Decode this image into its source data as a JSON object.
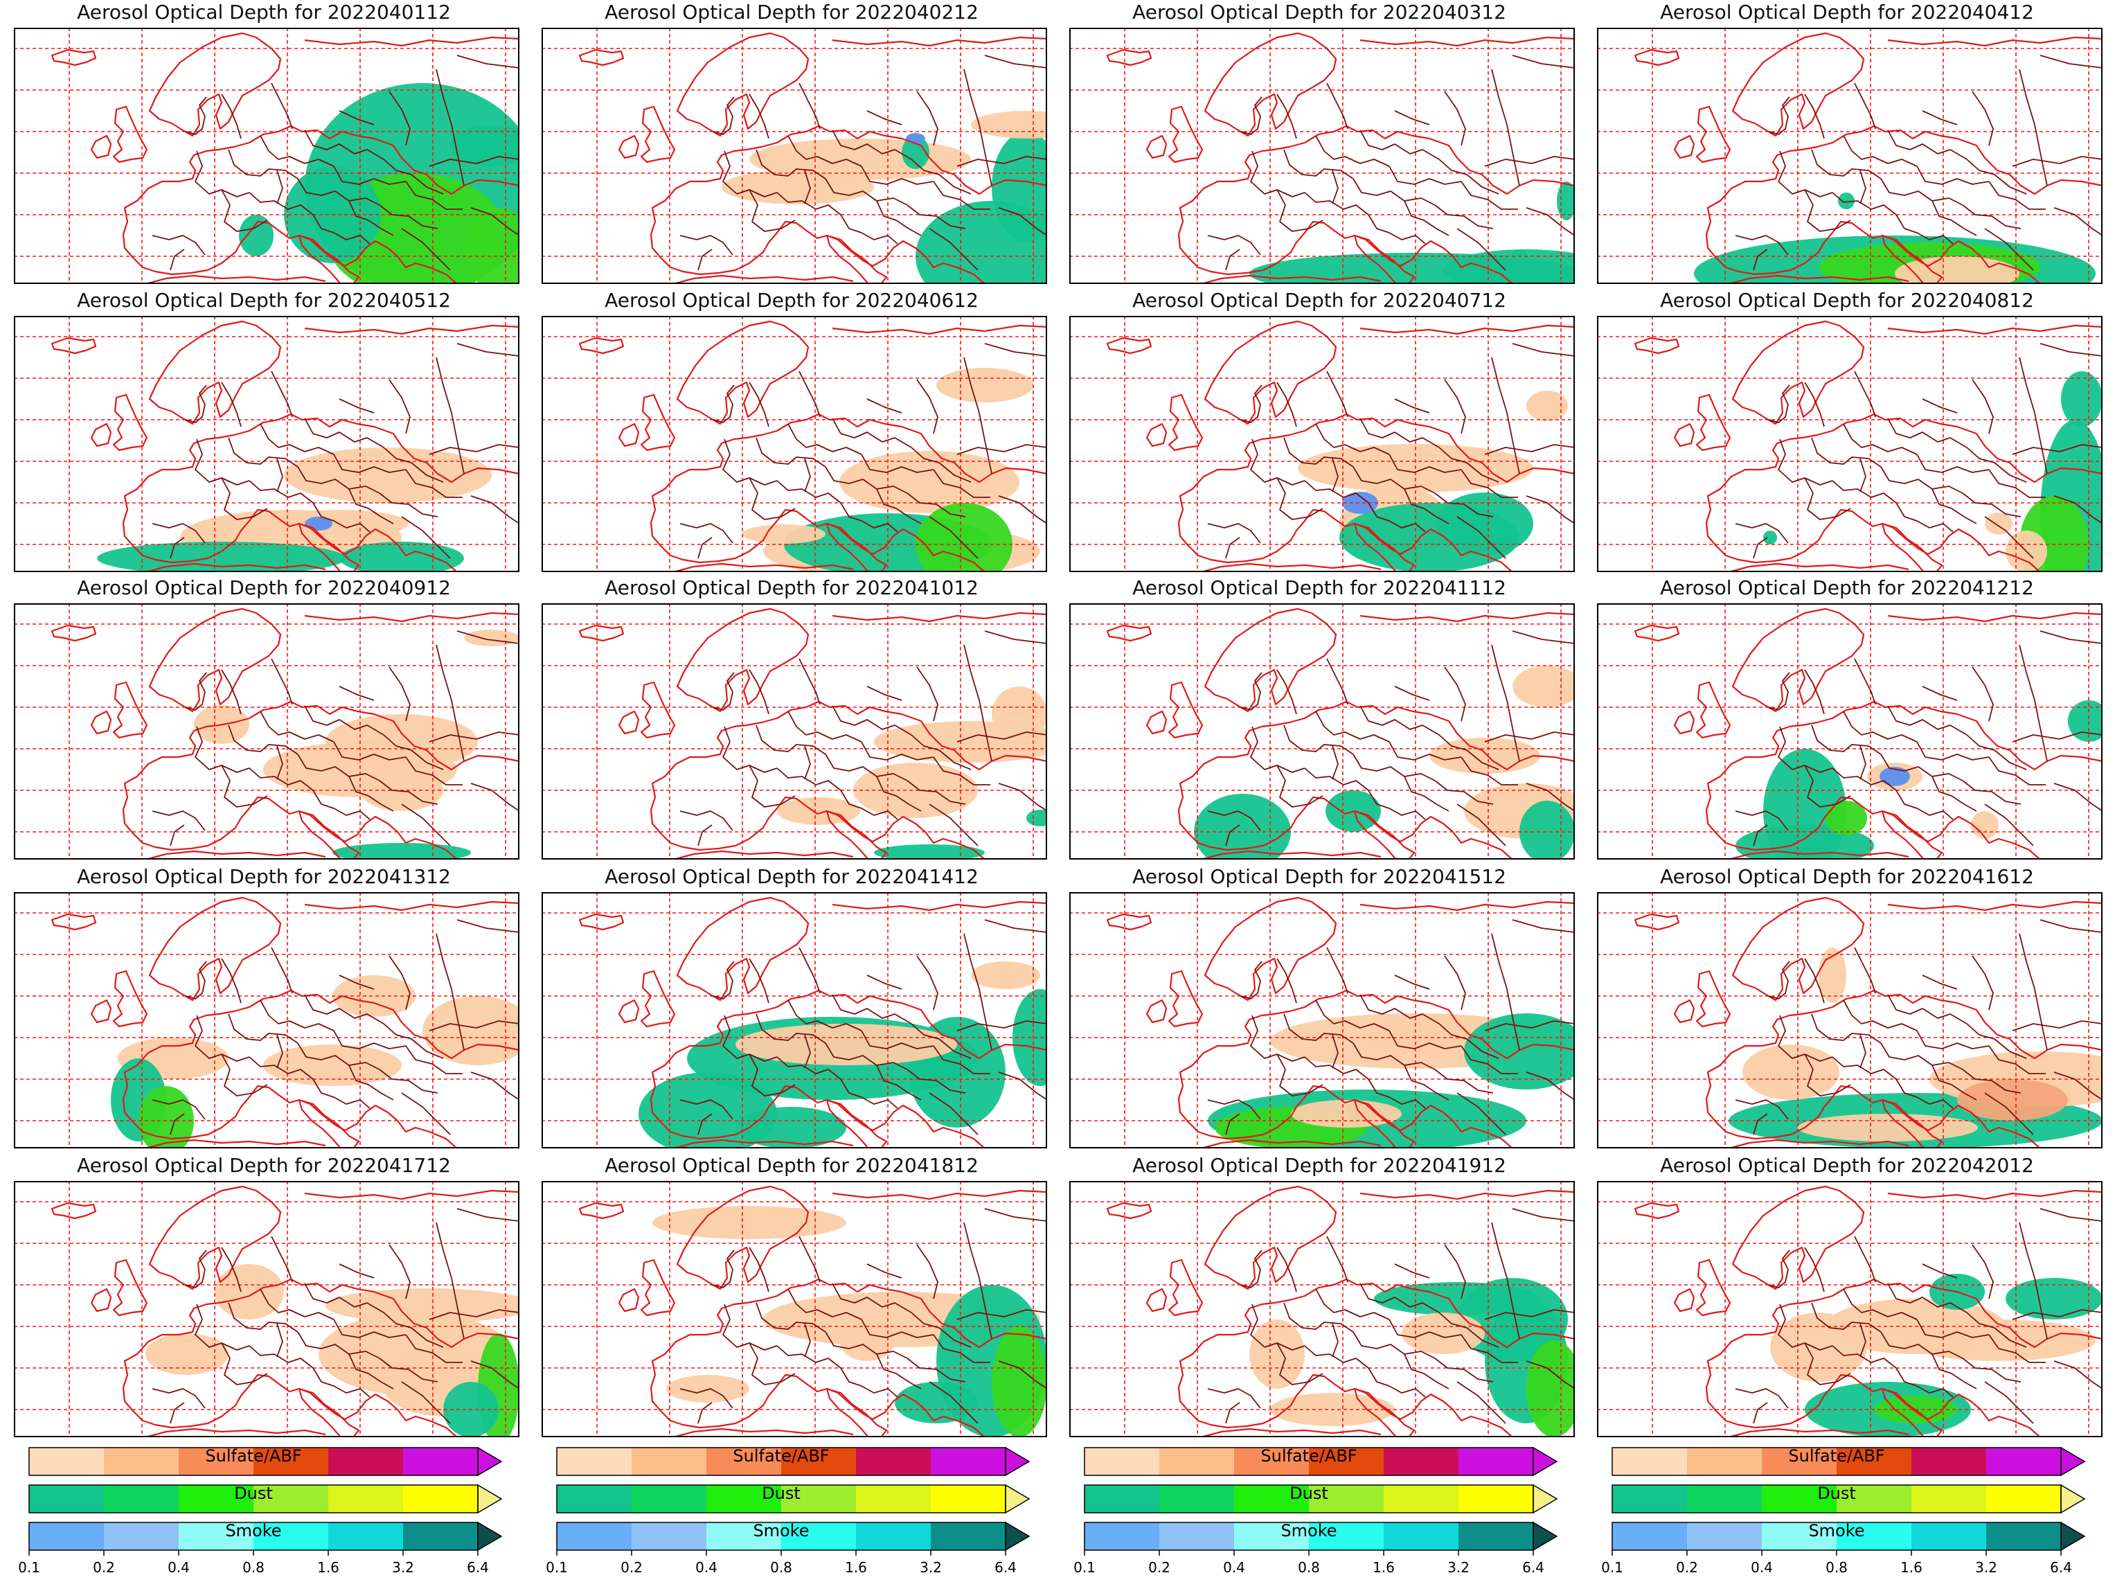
{
  "panels": [
    {
      "title": "Aerosol Optical Depth for 2022040112"
    },
    {
      "title": "Aerosol Optical Depth for 2022040212"
    },
    {
      "title": "Aerosol Optical Depth for 2022040312"
    },
    {
      "title": "Aerosol Optical Depth for 2022040412"
    },
    {
      "title": "Aerosol Optical Depth for 2022040512"
    },
    {
      "title": "Aerosol Optical Depth for 2022040612"
    },
    {
      "title": "Aerosol Optical Depth for 2022040712"
    },
    {
      "title": "Aerosol Optical Depth for 2022040812"
    },
    {
      "title": "Aerosol Optical Depth for 2022040912"
    },
    {
      "title": "Aerosol Optical Depth for 2022041012"
    },
    {
      "title": "Aerosol Optical Depth for 2022041112"
    },
    {
      "title": "Aerosol Optical Depth for 2022041212"
    },
    {
      "title": "Aerosol Optical Depth for 2022041312"
    },
    {
      "title": "Aerosol Optical Depth for 2022041412"
    },
    {
      "title": "Aerosol Optical Depth for 2022041512"
    },
    {
      "title": "Aerosol Optical Depth for 2022041612"
    },
    {
      "title": "Aerosol Optical Depth for 2022041712"
    },
    {
      "title": "Aerosol Optical Depth for 2022041812"
    },
    {
      "title": "Aerosol Optical Depth for 2022041912"
    },
    {
      "title": "Aerosol Optical Depth for 2022042012"
    }
  ],
  "legend": {
    "sulfate_label": "Sulfate/ABF",
    "dust_label": "Dust",
    "smoke_label": "Smoke",
    "ticks": [
      "0.1",
      "0.2",
      "0.4",
      "0.8",
      "1.6",
      "3.2",
      "6.4"
    ],
    "sulfate_colors": [
      "#fddcbc",
      "#fcbf8c",
      "#f98b58",
      "#e44a0e",
      "#cc0f55",
      "#cc10e0"
    ],
    "dust_colors": [
      "#13c48c",
      "#10d460",
      "#1eef0c",
      "#9bed2e",
      "#ddf41a",
      "#ffff00",
      "#f5f08c"
    ],
    "smoke_colors": [
      "#6aaef5",
      "#90c2f5",
      "#8ffcf6",
      "#2afcf0",
      "#0fd9d9",
      "#0e8e8a",
      "#0d4f4f"
    ]
  },
  "colors": {
    "grid": "#ff1010",
    "coast": "#e01a1a",
    "border": "#7a1010",
    "frame": "#000000",
    "sulfate": "#fbcfa6",
    "sulfate_dark": "#f4a57a",
    "dust_teal": "#14c48e",
    "dust_green": "#37d820",
    "smoke": "#5b8fef"
  }
}
